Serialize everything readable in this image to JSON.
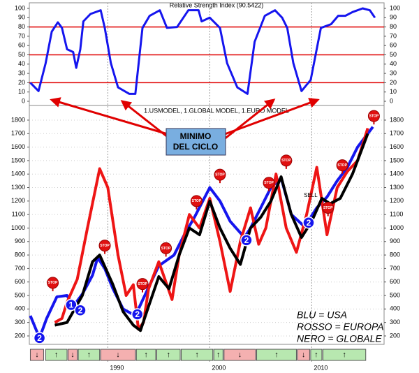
{
  "chart_data": [
    {
      "type": "line",
      "title": "Relative Strength Index (90.5422)",
      "x": [
        1982.4,
        1983.2,
        1983.9,
        1984.5,
        1985.1,
        1985.5,
        1986.0,
        1986.6,
        1986.9,
        1987.3,
        1987.6,
        1988.3,
        1989.3,
        1989.7,
        1990.3,
        1991.0,
        1992.1,
        1992.7,
        1993.4,
        1994.1,
        1995.1,
        1995.8,
        1996.8,
        1997.9,
        1998.9,
        1999.2,
        2000.0,
        2001.0,
        2001.7,
        2002.7,
        2003.7,
        2004.4,
        2005.4,
        2006.4,
        2007.1,
        2007.6,
        2008.2,
        2009.0,
        2009.9,
        2010.9,
        2011.9,
        2012.6,
        2013.3,
        2014.0,
        2015.0,
        2015.7,
        2016.2
      ],
      "values": [
        20,
        11,
        41,
        75,
        85,
        79,
        56,
        53,
        36,
        56,
        86,
        94,
        98,
        79,
        41,
        15,
        8,
        8,
        79,
        92,
        98,
        79,
        80,
        98,
        98,
        86,
        90,
        79,
        41,
        15,
        8,
        64,
        92,
        98,
        90,
        79,
        41,
        11,
        23,
        79,
        83,
        92,
        92,
        96,
        100,
        98,
        90
      ],
      "color": "#1515ee",
      "ylim": [
        0,
        100
      ],
      "yticks": [
        0,
        10,
        20,
        30,
        40,
        50,
        60,
        70,
        80,
        90,
        100
      ],
      "hlines": [
        80,
        50,
        20
      ],
      "hline_color": "#e00000"
    },
    {
      "type": "line",
      "subtitle": "1.USMODEL, 1.GLOBAL MODEL, 1.EURO MODEL",
      "xlim": [
        1982.3,
        2017.1
      ],
      "xticks": [
        1990,
        2000,
        2010
      ],
      "ylim": [
        148,
        1850
      ],
      "yticks": [
        200,
        300,
        400,
        500,
        600,
        700,
        800,
        900,
        1000,
        1100,
        1200,
        1300,
        1400,
        1500,
        1600,
        1700,
        1800
      ],
      "grid": true,
      "series": [
        {
          "name": "BLU = USA",
          "color": "#1515ee",
          "x": [
            1982.4,
            1983.3,
            1984.0,
            1985.0,
            1986.0,
            1986.6,
            1987.5,
            1988.5,
            1989.0,
            1989.7,
            1990.5,
            1991.5,
            1992.7,
            1993.5,
            1995.0,
            1996.5,
            1997.5,
            1998.5,
            2000.0,
            2001.0,
            2002.0,
            2003.4,
            2004.0,
            2005.0,
            2006.0,
            2007.0,
            2008.0,
            2009.3,
            2010.5,
            2011.5,
            2012.5,
            2013.5,
            2014.5,
            2016.0
          ],
          "values": [
            350,
            185,
            330,
            490,
            500,
            420,
            510,
            650,
            780,
            700,
            550,
            400,
            350,
            480,
            720,
            800,
            950,
            1080,
            1300,
            1200,
            1050,
            930,
            1000,
            1150,
            1300,
            1370,
            1100,
            1010,
            1150,
            1230,
            1350,
            1450,
            1600,
            1750
          ]
        },
        {
          "name": "ROSSO = EUROPA",
          "color": "#ee1515",
          "x": [
            1984.8,
            1985.5,
            1986.0,
            1987.0,
            1988.0,
            1989.2,
            1990.0,
            1991.0,
            1991.8,
            1992.5,
            1993.0,
            1993.5,
            1994.0,
            1995.0,
            1996.3,
            1997.0,
            1998.0,
            1999.0,
            2000.0,
            2001.0,
            2002.0,
            2003.0,
            2004.0,
            2004.8,
            2005.5,
            2006.5,
            2007.5,
            2008.5,
            2009.5,
            2010.5,
            2011.5,
            2012.5,
            2013.5,
            2014.5,
            2015.5
          ],
          "values": [
            300,
            330,
            450,
            620,
            1000,
            1440,
            1300,
            800,
            500,
            580,
            250,
            300,
            550,
            750,
            470,
            800,
            1100,
            1000,
            1220,
            900,
            530,
            900,
            1150,
            880,
            1000,
            1400,
            1000,
            820,
            1100,
            1450,
            950,
            1300,
            1420,
            1500,
            1740
          ]
        },
        {
          "name": "NERO = GLOBALE",
          "color": "#000000",
          "x": [
            1984.8,
            1986.0,
            1987.5,
            1988.5,
            1989.2,
            1990.5,
            1991.5,
            1992.5,
            1993.2,
            1994.0,
            1995.0,
            1996.0,
            1997.0,
            1998.0,
            1999.0,
            2000.0,
            2001.0,
            2002.0,
            2003.0,
            2004.0,
            2005.0,
            2006.0,
            2007.0,
            2008.0,
            2009.0,
            2010.0,
            2011.0,
            2011.8,
            2012.8,
            2014.0,
            2015.5
          ],
          "values": [
            280,
            300,
            500,
            750,
            800,
            580,
            380,
            280,
            240,
            420,
            640,
            550,
            800,
            1000,
            950,
            1200,
            1000,
            850,
            730,
            1000,
            1080,
            1200,
            1380,
            1100,
            930,
            1050,
            1220,
            1180,
            1220,
            1400,
            1700
          ]
        }
      ],
      "stops": [
        {
          "x": 1984.6,
          "y": 594,
          "label": "STOP"
        },
        {
          "x": 1989.7,
          "y": 870,
          "label": "STOP"
        },
        {
          "x": 1993.4,
          "y": 585,
          "label": "STOP"
        },
        {
          "x": 1995.7,
          "y": 850,
          "label": "STOP"
        },
        {
          "x": 1998.7,
          "y": 1200,
          "label": "STOP"
        },
        {
          "x": 2001.0,
          "y": 1395,
          "label": "STOP"
        },
        {
          "x": 2005.8,
          "y": 1335,
          "label": "STOP"
        },
        {
          "x": 2007.5,
          "y": 1500,
          "label": "STOP"
        },
        {
          "x": 2011.6,
          "y": 1150,
          "label": "STOP"
        },
        {
          "x": 2013.0,
          "y": 1465,
          "label": "STOP"
        },
        {
          "x": 2016.1,
          "y": 1830,
          "label": "STOP"
        }
      ],
      "points": [
        {
          "x": 1983.3,
          "y": 185,
          "label": "2"
        },
        {
          "x": 1986.4,
          "y": 430,
          "label": "1"
        },
        {
          "x": 1987.3,
          "y": 390,
          "label": "2"
        },
        {
          "x": 1992.9,
          "y": 360,
          "label": "2"
        },
        {
          "x": 2003.6,
          "y": 910,
          "label": "2"
        },
        {
          "x": 2009.7,
          "y": 1040,
          "label": "2"
        }
      ],
      "sell": {
        "x": 2009.9,
        "y": 1240,
        "label": "SELL"
      },
      "annotation": [
        "MINIMO",
        "DEL CICLO"
      ],
      "regimes": [
        {
          "start": 1982.4,
          "end": 1983.7,
          "label": "↓",
          "color": "#f4b0b0"
        },
        {
          "start": 1983.9,
          "end": 1986.0,
          "label": "↑",
          "color": "#b8e8b0"
        },
        {
          "start": 1986.1,
          "end": 1987.0,
          "label": "↓",
          "color": "#f4b0b0"
        },
        {
          "start": 1987.1,
          "end": 1989.2,
          "label": "↑",
          "color": "#b8e8b0"
        },
        {
          "start": 1989.3,
          "end": 1992.7,
          "label": "↓",
          "color": "#f4b0b0"
        },
        {
          "start": 1992.8,
          "end": 1994.7,
          "label": "↑",
          "color": "#b8e8b0"
        },
        {
          "start": 1994.8,
          "end": 1997.1,
          "label": "↑",
          "color": "#b8e8b0"
        },
        {
          "start": 1997.2,
          "end": 2000.3,
          "label": "↑",
          "color": "#b8e8b0"
        },
        {
          "start": 2000.4,
          "end": 2001.3,
          "label": "↑",
          "color": "#b8e8b0"
        },
        {
          "start": 2001.4,
          "end": 2004.5,
          "label": "↓",
          "color": "#f4b0b0"
        },
        {
          "start": 2004.6,
          "end": 2008.5,
          "label": "↑",
          "color": "#b8e8b0"
        },
        {
          "start": 2008.6,
          "end": 2009.8,
          "label": "↓",
          "color": "#f4b0b0"
        },
        {
          "start": 2009.9,
          "end": 2011.0,
          "label": "↑",
          "color": "#b8e8b0"
        },
        {
          "start": 2011.1,
          "end": 2015.3,
          "label": "↑",
          "color": "#b8e8b0"
        }
      ]
    }
  ]
}
